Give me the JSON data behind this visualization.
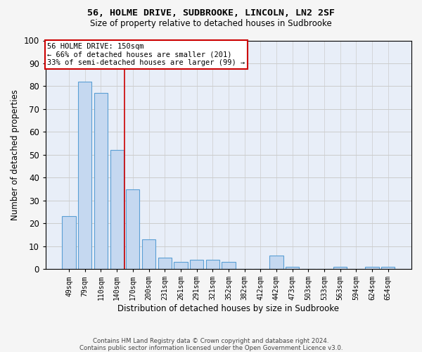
{
  "title1": "56, HOLME DRIVE, SUDBROOKE, LINCOLN, LN2 2SF",
  "title2": "Size of property relative to detached houses in Sudbrooke",
  "xlabel": "Distribution of detached houses by size in Sudbrooke",
  "ylabel": "Number of detached properties",
  "categories": [
    "49sqm",
    "79sqm",
    "110sqm",
    "140sqm",
    "170sqm",
    "200sqm",
    "231sqm",
    "261sqm",
    "291sqm",
    "321sqm",
    "352sqm",
    "382sqm",
    "412sqm",
    "442sqm",
    "473sqm",
    "503sqm",
    "533sqm",
    "563sqm",
    "594sqm",
    "624sqm",
    "654sqm"
  ],
  "values": [
    23,
    82,
    77,
    52,
    35,
    13,
    5,
    3,
    4,
    4,
    3,
    0,
    0,
    6,
    1,
    0,
    0,
    1,
    0,
    1,
    1
  ],
  "bar_color": "#c5d8f0",
  "bar_edge_color": "#5a9fd4",
  "ylim": [
    0,
    100
  ],
  "property_line_x": 3.5,
  "annotation_text": "56 HOLME DRIVE: 150sqm\n← 66% of detached houses are smaller (201)\n33% of semi-detached houses are larger (99) →",
  "annotation_box_color": "#ffffff",
  "annotation_border_color": "#cc0000",
  "footer_line1": "Contains HM Land Registry data © Crown copyright and database right 2024.",
  "footer_line2": "Contains public sector information licensed under the Open Government Licence v3.0.",
  "grid_color": "#cccccc",
  "bg_color": "#e8eef8",
  "fig_bg_color": "#f5f5f5"
}
